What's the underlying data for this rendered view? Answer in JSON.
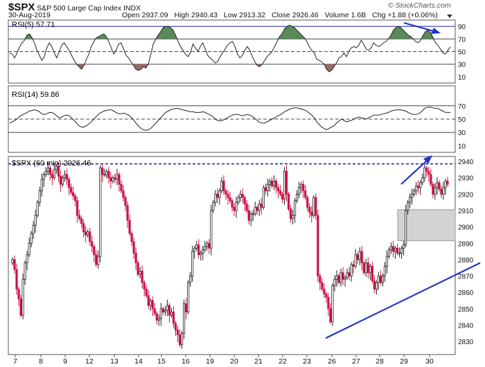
{
  "header": {
    "symbol": "$SPX",
    "name": "S&P 500 Large Cap Index",
    "exchange": "INDX",
    "date": "30-Aug-2019",
    "open_label": "Open",
    "open": "2937.09",
    "high_label": "High",
    "high": "2940.43",
    "low_label": "Low",
    "low": "2913.32",
    "close_label": "Close",
    "close": "2926.46",
    "volume_label": "Volume",
    "volume": "1.6B",
    "chg_label": "Chg",
    "chg": "+1.88 (+0.06%)",
    "watermark": "© StockCharts.com"
  },
  "colors": {
    "up_candle": "#ffffff",
    "down_candle": "#cc1144",
    "rsi_overbought_fill": "#5a8a5a",
    "rsi_oversold_fill": "#9c6a6a",
    "annotation_blue": "#1f35cc",
    "resistance_line": "#1a1aaa",
    "support_zone": "#d3d3d3"
  },
  "chart_data": [
    {
      "type": "line",
      "title": "RSI(5) 57.71",
      "ylim": [
        0,
        100
      ],
      "y_ticks": [
        10,
        30,
        50,
        70,
        90
      ],
      "levels": [
        30,
        50,
        70,
        90
      ],
      "series": [
        {
          "name": "RSI(5)",
          "values": [
            48,
            46,
            40,
            48,
            58,
            64,
            68,
            76,
            78,
            72,
            64,
            52,
            44,
            36,
            42,
            56,
            64,
            58,
            48,
            40,
            50,
            60,
            64,
            58,
            52,
            44,
            36,
            30,
            26,
            22,
            28,
            38,
            46,
            58,
            66,
            72,
            74,
            76,
            78,
            74,
            66,
            56,
            46,
            52,
            62,
            64,
            54,
            44,
            40,
            34,
            28,
            22,
            20,
            22,
            26,
            24,
            30,
            46,
            62,
            70,
            76,
            82,
            88,
            90,
            90,
            88,
            84,
            76,
            66,
            58,
            52,
            46,
            42,
            48,
            62,
            56,
            50,
            58,
            64,
            54,
            44,
            40,
            36,
            32,
            34,
            42,
            48,
            54,
            60,
            64,
            66,
            58,
            46,
            40,
            44,
            52,
            58,
            52,
            42,
            34,
            28,
            26,
            30,
            36,
            42,
            46,
            50,
            58,
            66,
            74,
            78,
            86,
            90,
            92,
            90,
            88,
            84,
            80,
            76,
            72,
            66,
            58,
            52,
            48,
            38,
            36,
            34,
            30,
            22,
            18,
            20,
            26,
            32,
            40,
            42,
            48,
            42,
            50,
            56,
            58,
            56,
            60,
            68,
            62,
            54,
            52,
            56,
            64,
            60,
            58,
            60,
            64,
            66,
            70,
            76,
            84,
            88,
            90,
            88,
            84,
            80,
            76,
            74,
            70,
            66,
            64,
            68,
            76,
            82,
            84,
            80,
            72,
            64,
            60,
            54,
            48,
            46,
            52,
            57.7
          ]
        }
      ]
    },
    {
      "type": "line",
      "title": "RSI(14) 59.86",
      "ylim": [
        0,
        100
      ],
      "y_ticks": [
        10,
        30,
        50,
        70
      ],
      "levels": [
        30,
        50,
        70
      ],
      "series": [
        {
          "name": "RSI(14)",
          "values": [
            44,
            46,
            48,
            50,
            54,
            56,
            58,
            60,
            62,
            63,
            64,
            63,
            61,
            58,
            57,
            58,
            60,
            60,
            58,
            55,
            52,
            53,
            55,
            56,
            55,
            52,
            48,
            44,
            40,
            38,
            38,
            40,
            43,
            46,
            50,
            54,
            58,
            60,
            62,
            63,
            64,
            64,
            62,
            60,
            58,
            58,
            59,
            58,
            56,
            53,
            49,
            44,
            40,
            36,
            34,
            33,
            34,
            36,
            40,
            44,
            48,
            52,
            56,
            60,
            62,
            64,
            65,
            66,
            66,
            65,
            64,
            63,
            62,
            61,
            61,
            60,
            60,
            60,
            61,
            60,
            58,
            56,
            54,
            50,
            48,
            47,
            48,
            50,
            52,
            54,
            56,
            57,
            57,
            56,
            55,
            56,
            57,
            56,
            54,
            51,
            48,
            45,
            44,
            44,
            46,
            48,
            50,
            52,
            54,
            56,
            58,
            61,
            63,
            65,
            66,
            67,
            67,
            66,
            65,
            64,
            62,
            59,
            56,
            52,
            46,
            42,
            38,
            36,
            34,
            36,
            38,
            40,
            44,
            47,
            50,
            48,
            46,
            47,
            48,
            50,
            52,
            53,
            52,
            51,
            50,
            52,
            54,
            56,
            56,
            56,
            57,
            58,
            59,
            60,
            62,
            63,
            64,
            64,
            64,
            63,
            62,
            60,
            58,
            57,
            57,
            58,
            60,
            64,
            67,
            68,
            68,
            67,
            66,
            66,
            64,
            62,
            60,
            60,
            59.86
          ]
        }
      ]
    },
    {
      "type": "candlestick",
      "title": "$SPX (60 min) 2926.46",
      "ylim": [
        2822,
        2943
      ],
      "y_ticks": [
        2830,
        2840,
        2850,
        2860,
        2870,
        2880,
        2890,
        2900,
        2910,
        2920,
        2930,
        2940
      ],
      "x_labels": [
        "7",
        "8",
        "9",
        "12",
        "13",
        "14",
        "15",
        "16",
        "19",
        "20",
        "21",
        "22",
        "23",
        "26",
        "27",
        "28",
        "29",
        "30"
      ],
      "resistance_level": 2938.5,
      "support_zone": [
        2891.5,
        2910.5
      ],
      "trendline": [
        [
          2832,
          2878
        ]
      ],
      "closes": [
        2880,
        2874,
        2862,
        2856,
        2846,
        2868,
        2878,
        2883,
        2890,
        2896,
        2901,
        2907,
        2915,
        2922,
        2929,
        2932,
        2934,
        2936,
        2932,
        2930,
        2935,
        2937,
        2931,
        2926,
        2930,
        2932,
        2929,
        2924,
        2921,
        2919,
        2916,
        2907,
        2905,
        2902,
        2897,
        2895,
        2897,
        2891,
        2888,
        2883,
        2877,
        2882,
        2936,
        2932,
        2932,
        2934,
        2930,
        2928,
        2930,
        2929,
        2932,
        2926,
        2922,
        2918,
        2913,
        2904,
        2896,
        2891,
        2884,
        2878,
        2871,
        2873,
        2866,
        2862,
        2858,
        2852,
        2855,
        2850,
        2847,
        2843,
        2844,
        2850,
        2848,
        2849,
        2852,
        2846,
        2848,
        2841,
        2837,
        2834,
        2828,
        2835,
        2853,
        2848,
        2866,
        2870,
        2885,
        2887,
        2889,
        2883,
        2884,
        2886,
        2888,
        2890,
        2887,
        2910,
        2915,
        2920,
        2918,
        2922,
        2928,
        2922,
        2920,
        2918,
        2916,
        2912,
        2910,
        2915,
        2918,
        2920,
        2918,
        2914,
        2910,
        2904,
        2908,
        2908,
        2912,
        2910,
        2914,
        2912,
        2924,
        2922,
        2926,
        2928,
        2925,
        2928,
        2924,
        2922,
        2920,
        2917,
        2934,
        2920,
        2911,
        2905,
        2907,
        2916,
        2920,
        2924,
        2926,
        2922,
        2918,
        2912,
        2909,
        2907,
        2918,
        2907,
        2870,
        2866,
        2862,
        2859,
        2857,
        2850,
        2842,
        2864,
        2868,
        2870,
        2866,
        2872,
        2868,
        2869,
        2872,
        2870,
        2877,
        2876,
        2883,
        2880,
        2885,
        2878,
        2872,
        2878,
        2872,
        2876,
        2867,
        2862,
        2866,
        2870,
        2866,
        2870,
        2876,
        2882,
        2886,
        2888,
        2885,
        2887,
        2884,
        2884,
        2887,
        2889,
        2910,
        2915,
        2918,
        2920,
        2922,
        2925,
        2924,
        2927,
        2930,
        2936,
        2934,
        2932,
        2926,
        2920,
        2924,
        2927,
        2923,
        2920,
        2924,
        2928,
        2926
      ]
    }
  ]
}
